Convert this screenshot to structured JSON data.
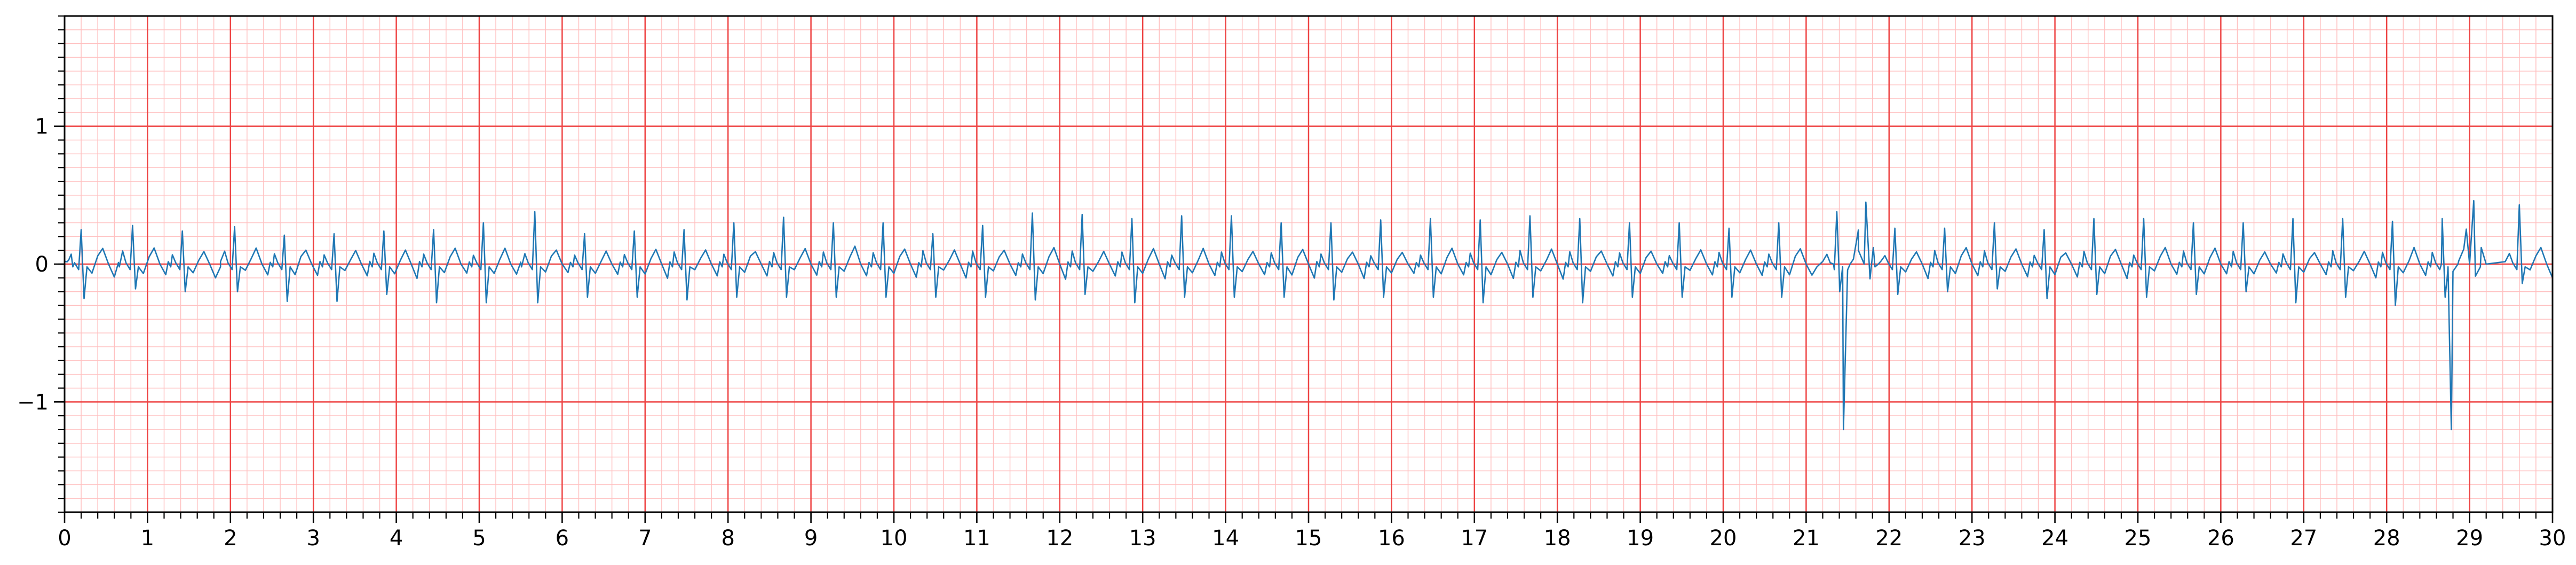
{
  "chart_data": {
    "type": "line",
    "title": "",
    "xlabel": "",
    "ylabel": "",
    "xlim": [
      0,
      30
    ],
    "ylim": [
      -1.8,
      1.8
    ],
    "x_ticks": [
      0,
      1,
      2,
      3,
      4,
      5,
      6,
      7,
      8,
      9,
      10,
      11,
      12,
      13,
      14,
      15,
      16,
      17,
      18,
      19,
      20,
      21,
      22,
      23,
      24,
      25,
      26,
      27,
      28,
      29,
      30
    ],
    "x_tick_labels": [
      "0",
      "1",
      "2",
      "3",
      "4",
      "5",
      "6",
      "7",
      "8",
      "9",
      "10",
      "11",
      "12",
      "13",
      "14",
      "15",
      "16",
      "17",
      "18",
      "19",
      "20",
      "21",
      "22",
      "23",
      "24",
      "25",
      "26",
      "27",
      "28",
      "29",
      "30"
    ],
    "y_ticks": [
      -1,
      0,
      1
    ],
    "y_tick_labels": [
      "−1",
      "0",
      "1"
    ],
    "grid": {
      "major": true,
      "minor": true,
      "major_step_x": 1,
      "minor_step_x": 0.2,
      "major_step_y": 1,
      "minor_step_y": 0.1,
      "major_color": "#ee4444",
      "minor_color": "#ffc0c0"
    },
    "line_color": "#1f77b4",
    "series": [
      {
        "name": "",
        "beat_times": [
          0.2,
          0.82,
          1.42,
          2.05,
          2.65,
          3.25,
          3.85,
          4.45,
          5.05,
          5.67,
          6.27,
          6.87,
          7.47,
          8.07,
          8.67,
          9.27,
          9.87,
          10.47,
          11.07,
          11.67,
          12.27,
          12.87,
          13.47,
          14.07,
          14.67,
          15.27,
          15.87,
          16.47,
          17.07,
          17.67,
          18.27,
          18.87,
          19.47,
          20.07,
          20.67,
          21.37,
          22.07,
          22.67,
          23.27,
          23.87,
          24.47,
          25.07,
          25.67,
          26.27,
          26.87,
          27.47,
          28.07,
          28.67,
          29.6
        ],
        "r_peaks": [
          0.25,
          0.28,
          0.24,
          0.27,
          0.21,
          0.22,
          0.24,
          0.25,
          0.3,
          0.38,
          0.22,
          0.24,
          0.25,
          0.3,
          0.34,
          0.3,
          0.3,
          0.22,
          0.28,
          0.37,
          0.36,
          0.33,
          0.35,
          0.35,
          0.3,
          0.3,
          0.32,
          0.33,
          0.32,
          0.35,
          0.33,
          0.3,
          0.3,
          0.26,
          0.3,
          0.38,
          0.26,
          0.26,
          0.3,
          0.25,
          0.33,
          0.33,
          0.3,
          0.3,
          0.33,
          0.33,
          0.31,
          0.33,
          0.43
        ],
        "s_troughs": [
          -0.25,
          -0.18,
          -0.2,
          -0.2,
          -0.27,
          -0.27,
          -0.22,
          -0.28,
          -0.28,
          -0.28,
          -0.24,
          -0.24,
          -0.26,
          -0.24,
          -0.24,
          -0.24,
          -0.24,
          -0.24,
          -0.24,
          -0.26,
          -0.22,
          -0.28,
          -0.24,
          -0.24,
          -0.24,
          -0.26,
          -0.24,
          -0.24,
          -0.28,
          -0.24,
          -0.28,
          -0.24,
          -0.24,
          -0.24,
          -0.24,
          -0.2,
          -0.22,
          -0.2,
          -0.18,
          -0.25,
          -0.22,
          -0.24,
          -0.22,
          -0.2,
          -0.28,
          -0.24,
          -0.3,
          -0.24,
          -0.14
        ],
        "ectopic_beats": [
          {
            "x": 21.45,
            "min": -1.2,
            "max": 0.45
          },
          {
            "x": 28.78,
            "min": -1.2,
            "max": 0.46
          }
        ]
      }
    ]
  }
}
